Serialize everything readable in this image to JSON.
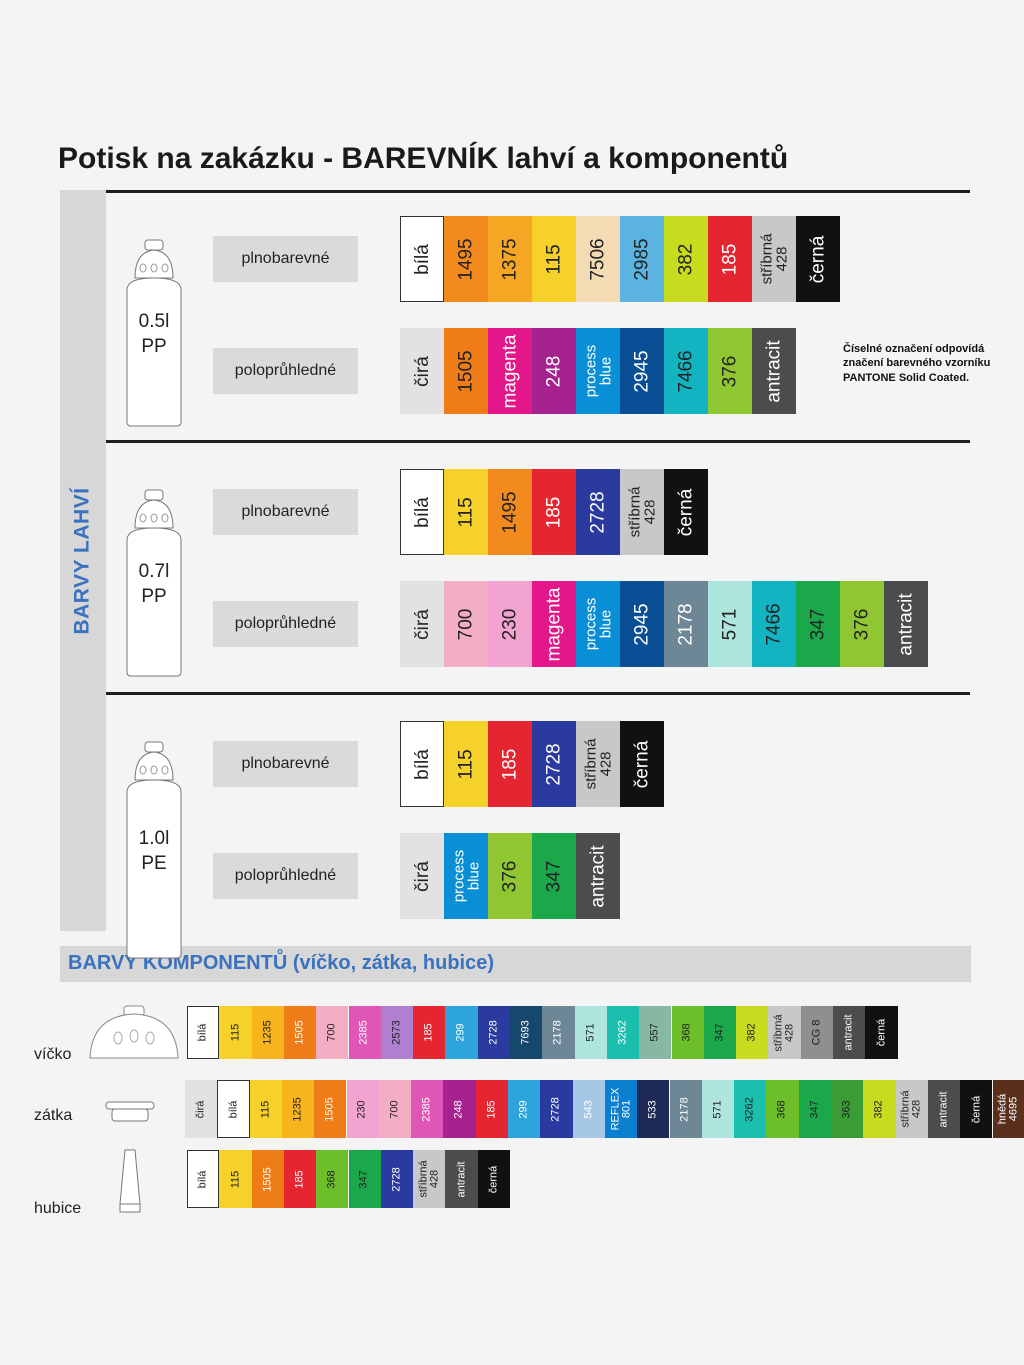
{
  "title": "Potisk na zakázku - BAREVNÍK lahví a komponentů",
  "side_label": "BARVY LAHVÍ",
  "pantone_note": "Číselné označení odpovídá značení barevného vzorníku PANTONE Solid Coated.",
  "bottle_sections": [
    {
      "bottle_size": "0.5l",
      "material": "PP",
      "rows": [
        {
          "label": "plnobarevné",
          "swatches": [
            {
              "text": "bílá",
              "bg": "#ffffff",
              "fg": "#222222"
            },
            {
              "text": "1495",
              "bg": "#f28a1e",
              "fg": "#222222"
            },
            {
              "text": "1375",
              "bg": "#f5a623",
              "fg": "#222222"
            },
            {
              "text": "115",
              "bg": "#f5d12a",
              "fg": "#222222"
            },
            {
              "text": "7506",
              "bg": "#f3dcb3",
              "fg": "#222222"
            },
            {
              "text": "2985",
              "bg": "#5ab3e0",
              "fg": "#222222"
            },
            {
              "text": "382",
              "bg": "#c7dc1f",
              "fg": "#222222"
            },
            {
              "text": "185",
              "bg": "#e52530",
              "fg": "#ffffff"
            },
            {
              "text": "stříbrná\n428",
              "bg": "#c7c8ca",
              "fg": "#222222"
            },
            {
              "text": "černá",
              "bg": "#111111",
              "fg": "#ffffff"
            }
          ]
        },
        {
          "label": "poloprůhledné",
          "swatches": [
            {
              "text": "čirá",
              "bg": "#e2e2e2",
              "fg": "#222222"
            },
            {
              "text": "1505",
              "bg": "#f07c18",
              "fg": "#222222"
            },
            {
              "text": "magenta",
              "bg": "#e3168a",
              "fg": "#ffffff"
            },
            {
              "text": "248",
              "bg": "#a5228f",
              "fg": "#ffffff"
            },
            {
              "text": "process\nblue",
              "bg": "#0a8fd6",
              "fg": "#ffffff"
            },
            {
              "text": "2945",
              "bg": "#0a4f96",
              "fg": "#ffffff"
            },
            {
              "text": "7466",
              "bg": "#13b4c2",
              "fg": "#222222"
            },
            {
              "text": "376",
              "bg": "#8fc632",
              "fg": "#222222"
            },
            {
              "text": "antracit",
              "bg": "#4c4c4e",
              "fg": "#ffffff"
            }
          ]
        }
      ]
    },
    {
      "bottle_size": "0.7l",
      "material": "PP",
      "rows": [
        {
          "label": "plnobarevné",
          "swatches": [
            {
              "text": "bílá",
              "bg": "#ffffff",
              "fg": "#222222"
            },
            {
              "text": "115",
              "bg": "#f5d12a",
              "fg": "#222222"
            },
            {
              "text": "1495",
              "bg": "#f28a1e",
              "fg": "#222222"
            },
            {
              "text": "185",
              "bg": "#e52530",
              "fg": "#ffffff"
            },
            {
              "text": "2728",
              "bg": "#2b3a9e",
              "fg": "#ffffff"
            },
            {
              "text": "stříbrná\n428",
              "bg": "#c7c8ca",
              "fg": "#222222"
            },
            {
              "text": "černá",
              "bg": "#111111",
              "fg": "#ffffff"
            }
          ]
        },
        {
          "label": "poloprůhledné",
          "swatches": [
            {
              "text": "čirá",
              "bg": "#e2e2e2",
              "fg": "#222222"
            },
            {
              "text": "700",
              "bg": "#f4aec4",
              "fg": "#222222"
            },
            {
              "text": "230",
              "bg": "#f2a3d0",
              "fg": "#222222"
            },
            {
              "text": "magenta",
              "bg": "#e3168a",
              "fg": "#ffffff"
            },
            {
              "text": "process\nblue",
              "bg": "#0a8fd6",
              "fg": "#ffffff"
            },
            {
              "text": "2945",
              "bg": "#0a4f96",
              "fg": "#ffffff"
            },
            {
              "text": "2178",
              "bg": "#6e8797",
              "fg": "#ffffff"
            },
            {
              "text": "571",
              "bg": "#aee6dd",
              "fg": "#222222"
            },
            {
              "text": "7466",
              "bg": "#13b4c2",
              "fg": "#222222"
            },
            {
              "text": "347",
              "bg": "#1aa84a",
              "fg": "#222222"
            },
            {
              "text": "376",
              "bg": "#8fc632",
              "fg": "#222222"
            },
            {
              "text": "antracit",
              "bg": "#4c4c4e",
              "fg": "#ffffff"
            }
          ]
        }
      ]
    },
    {
      "bottle_size": "1.0l",
      "material": "PE",
      "rows": [
        {
          "label": "plnobarevné",
          "swatches": [
            {
              "text": "bílá",
              "bg": "#ffffff",
              "fg": "#222222"
            },
            {
              "text": "115",
              "bg": "#f5d12a",
              "fg": "#222222"
            },
            {
              "text": "185",
              "bg": "#e52530",
              "fg": "#ffffff"
            },
            {
              "text": "2728",
              "bg": "#2b3a9e",
              "fg": "#ffffff"
            },
            {
              "text": "stříbrná\n428",
              "bg": "#c7c8ca",
              "fg": "#222222"
            },
            {
              "text": "černá",
              "bg": "#111111",
              "fg": "#ffffff"
            }
          ]
        },
        {
          "label": "poloprůhledné",
          "swatches": [
            {
              "text": "čirá",
              "bg": "#e2e2e2",
              "fg": "#222222"
            },
            {
              "text": "process\nblue",
              "bg": "#0a8fd6",
              "fg": "#ffffff"
            },
            {
              "text": "376",
              "bg": "#8fc632",
              "fg": "#222222"
            },
            {
              "text": "347",
              "bg": "#1aa84a",
              "fg": "#222222"
            },
            {
              "text": "antracit",
              "bg": "#4c4c4e",
              "fg": "#ffffff"
            }
          ]
        }
      ]
    }
  ],
  "components_title": "BARVY KOMPONENTŮ (víčko, zátka, hubice)",
  "components": [
    {
      "label": "víčko",
      "swatches": [
        {
          "text": "bílá",
          "bg": "#ffffff",
          "fg": "#222222"
        },
        {
          "text": "115",
          "bg": "#f5d12a",
          "fg": "#222222"
        },
        {
          "text": "1235",
          "bg": "#f7b41c",
          "fg": "#222222"
        },
        {
          "text": "1505",
          "bg": "#f07c18",
          "fg": "#ffffff"
        },
        {
          "text": "700",
          "bg": "#f4aec4",
          "fg": "#222222"
        },
        {
          "text": "2385",
          "bg": "#e056b6",
          "fg": "#ffffff"
        },
        {
          "text": "2573",
          "bg": "#b07fd0",
          "fg": "#222222"
        },
        {
          "text": "185",
          "bg": "#e52530",
          "fg": "#ffffff"
        },
        {
          "text": "299",
          "bg": "#2da5dc",
          "fg": "#ffffff"
        },
        {
          "text": "2728",
          "bg": "#2b3a9e",
          "fg": "#ffffff"
        },
        {
          "text": "7693",
          "bg": "#16476c",
          "fg": "#ffffff"
        },
        {
          "text": "2178",
          "bg": "#6e8797",
          "fg": "#ffffff"
        },
        {
          "text": "571",
          "bg": "#aee6dd",
          "fg": "#222222"
        },
        {
          "text": "3262",
          "bg": "#1bbfae",
          "fg": "#ffffff"
        },
        {
          "text": "557",
          "bg": "#86b8a2",
          "fg": "#222222"
        },
        {
          "text": "368",
          "bg": "#6dbf2a",
          "fg": "#222222"
        },
        {
          "text": "347",
          "bg": "#1aa84a",
          "fg": "#222222"
        },
        {
          "text": "382",
          "bg": "#c7dc1f",
          "fg": "#222222"
        },
        {
          "text": "stříbrná\n428",
          "bg": "#c7c8ca",
          "fg": "#222222"
        },
        {
          "text": "CG 8",
          "bg": "#8f8f8f",
          "fg": "#222222"
        },
        {
          "text": "antracit",
          "bg": "#4c4c4e",
          "fg": "#ffffff"
        },
        {
          "text": "černá",
          "bg": "#111111",
          "fg": "#ffffff"
        }
      ]
    },
    {
      "label": "zátka",
      "swatches": [
        {
          "text": "čirá",
          "bg": "#e2e2e2",
          "fg": "#222222"
        },
        {
          "text": "bílá",
          "bg": "#ffffff",
          "fg": "#222222"
        },
        {
          "text": "115",
          "bg": "#f5d12a",
          "fg": "#222222"
        },
        {
          "text": "1235",
          "bg": "#f7b41c",
          "fg": "#222222"
        },
        {
          "text": "1505",
          "bg": "#f07c18",
          "fg": "#ffffff"
        },
        {
          "text": "230",
          "bg": "#f2a3d0",
          "fg": "#222222"
        },
        {
          "text": "700",
          "bg": "#f4aec4",
          "fg": "#222222"
        },
        {
          "text": "2385",
          "bg": "#e056b6",
          "fg": "#ffffff"
        },
        {
          "text": "248",
          "bg": "#a5228f",
          "fg": "#ffffff"
        },
        {
          "text": "185",
          "bg": "#e52530",
          "fg": "#ffffff"
        },
        {
          "text": "299",
          "bg": "#2da5dc",
          "fg": "#ffffff"
        },
        {
          "text": "2728",
          "bg": "#2b3a9e",
          "fg": "#ffffff"
        },
        {
          "text": "543",
          "bg": "#a6c8e6",
          "fg": "#ffffff"
        },
        {
          "text": "REFLEX\n801",
          "bg": "#0a7fd0",
          "fg": "#ffffff"
        },
        {
          "text": "533",
          "bg": "#1e2a55",
          "fg": "#ffffff"
        },
        {
          "text": "2178",
          "bg": "#6e8797",
          "fg": "#ffffff"
        },
        {
          "text": "571",
          "bg": "#aee6dd",
          "fg": "#222222"
        },
        {
          "text": "3262",
          "bg": "#1bbfae",
          "fg": "#222222"
        },
        {
          "text": "368",
          "bg": "#6dbf2a",
          "fg": "#222222"
        },
        {
          "text": "347",
          "bg": "#1aa84a",
          "fg": "#222222"
        },
        {
          "text": "363",
          "bg": "#3a9c34",
          "fg": "#222222"
        },
        {
          "text": "382",
          "bg": "#c7dc1f",
          "fg": "#222222"
        },
        {
          "text": "stříbrná\n428",
          "bg": "#c7c8ca",
          "fg": "#222222"
        },
        {
          "text": "antracit",
          "bg": "#4c4c4e",
          "fg": "#ffffff"
        },
        {
          "text": "černá",
          "bg": "#111111",
          "fg": "#ffffff"
        },
        {
          "text": "hnědá\n4695",
          "bg": "#5a2f1c",
          "fg": "#ffffff"
        }
      ]
    },
    {
      "label": "hubice",
      "swatches": [
        {
          "text": "bílá",
          "bg": "#ffffff",
          "fg": "#222222"
        },
        {
          "text": "115",
          "bg": "#f5d12a",
          "fg": "#222222"
        },
        {
          "text": "1505",
          "bg": "#f07c18",
          "fg": "#ffffff"
        },
        {
          "text": "185",
          "bg": "#e52530",
          "fg": "#ffffff"
        },
        {
          "text": "368",
          "bg": "#6dbf2a",
          "fg": "#222222"
        },
        {
          "text": "347",
          "bg": "#1aa84a",
          "fg": "#222222"
        },
        {
          "text": "2728",
          "bg": "#2b3a9e",
          "fg": "#ffffff"
        },
        {
          "text": "stříbrná\n428",
          "bg": "#c7c8ca",
          "fg": "#222222"
        },
        {
          "text": "antracit",
          "bg": "#4c4c4e",
          "fg": "#ffffff"
        },
        {
          "text": "černá",
          "bg": "#111111",
          "fg": "#ffffff"
        }
      ]
    }
  ]
}
